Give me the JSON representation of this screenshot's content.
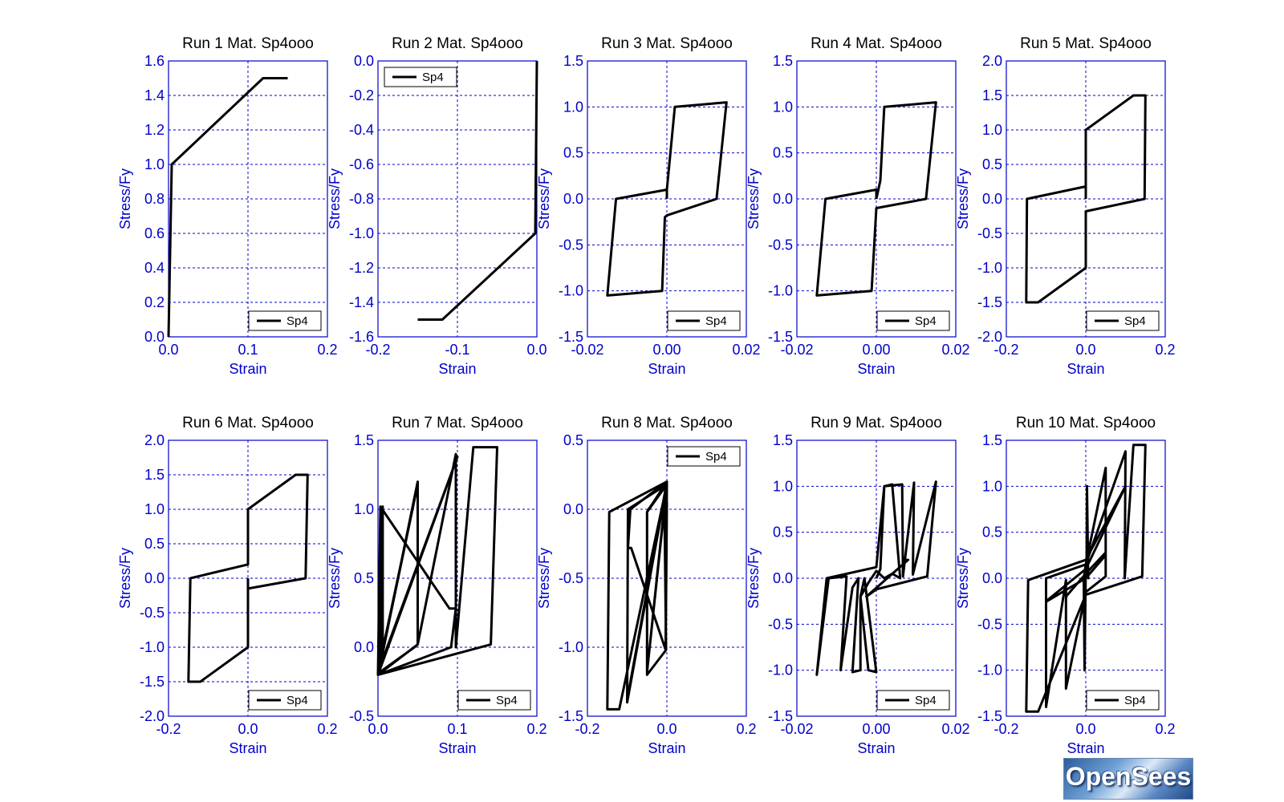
{
  "chart_data": [
    {
      "type": "line",
      "title": "Run 1   Mat. Sp4ooo",
      "xlabel": "Strain",
      "ylabel": "Stress/Fy",
      "xlim": [
        0,
        0.2
      ],
      "ylim": [
        0,
        1.6
      ],
      "xticks": [
        0,
        0.1,
        0.2
      ],
      "xtick_labels": [
        "0.0",
        "0.1",
        "0.2"
      ],
      "yticks": [
        0,
        0.2,
        0.4,
        0.6,
        0.8,
        1.0,
        1.2,
        1.4,
        1.6
      ],
      "ytick_labels": [
        "0.0",
        "0.2",
        "0.4",
        "0.6",
        "0.8",
        "1.0",
        "1.2",
        "1.4",
        "1.6"
      ],
      "grid": true,
      "legend_position": "bottom-right",
      "series": [
        {
          "name": "Sp4",
          "color": "#000000",
          "x": [
            0,
            0.004,
            0.119,
            0.15
          ],
          "y": [
            0,
            1.0,
            1.5,
            1.5
          ]
        }
      ]
    },
    {
      "type": "line",
      "title": "Run 2   Mat. Sp4ooo",
      "xlabel": "Strain",
      "ylabel": "Stress/Fy",
      "xlim": [
        -0.2,
        0
      ],
      "ylim": [
        -1.6,
        0
      ],
      "xticks": [
        -0.2,
        -0.1,
        0
      ],
      "xtick_labels": [
        "-0.2",
        "-0.1",
        "0.0"
      ],
      "yticks": [
        -1.6,
        -1.4,
        -1.2,
        -1.0,
        -0.8,
        -0.6,
        -0.4,
        -0.2,
        0
      ],
      "ytick_labels": [
        "-1.6",
        "-1.4",
        "-1.2",
        "-1.0",
        "-0.8",
        "-0.6",
        "-0.4",
        "-0.2",
        "0.0"
      ],
      "grid": true,
      "legend_position": "top-left",
      "series": [
        {
          "name": "Sp4",
          "color": "#000000",
          "x": [
            0,
            -0.002,
            -0.119,
            -0.15
          ],
          "y": [
            0,
            -1.0,
            -1.5,
            -1.5
          ]
        }
      ]
    },
    {
      "type": "line",
      "title": "Run 3   Mat. Sp4ooo",
      "xlabel": "Strain",
      "ylabel": "Stress/Fy",
      "xlim": [
        -0.02,
        0.02
      ],
      "ylim": [
        -1.5,
        1.5
      ],
      "xticks": [
        -0.02,
        0,
        0.02
      ],
      "xtick_labels": [
        "-0.02",
        "0.00",
        "0.02"
      ],
      "yticks": [
        -1.5,
        -1.0,
        -0.5,
        0,
        0.5,
        1.0,
        1.5
      ],
      "ytick_labels": [
        "-1.5",
        "-1.0",
        "-0.5",
        "0.0",
        "0.5",
        "1.0",
        "1.5"
      ],
      "grid": true,
      "legend_position": "bottom-right",
      "series": [
        {
          "name": "Sp4",
          "color": "#000000",
          "x": [
            0,
            0,
            0.002,
            0.015,
            0.0125,
            0,
            -0.0005,
            -0.0012,
            -0.015,
            -0.0128,
            0,
            0
          ],
          "y": [
            0,
            0.1,
            1.0,
            1.05,
            0.0,
            -0.18,
            -0.2,
            -1.0,
            -1.05,
            0.0,
            0.1,
            0.05
          ]
        }
      ]
    },
    {
      "type": "line",
      "title": "Run 4   Mat. Sp4ooo",
      "xlabel": "Strain",
      "ylabel": "Stress/Fy",
      "xlim": [
        -0.02,
        0.02
      ],
      "ylim": [
        -1.5,
        1.5
      ],
      "xticks": [
        -0.02,
        0,
        0.02
      ],
      "xtick_labels": [
        "-0.02",
        "0.00",
        "0.02"
      ],
      "yticks": [
        -1.5,
        -1.0,
        -0.5,
        0,
        0.5,
        1.0,
        1.5
      ],
      "ytick_labels": [
        "-1.5",
        "-1.0",
        "-0.5",
        "0.0",
        "0.5",
        "1.0",
        "1.5"
      ],
      "grid": true,
      "legend_position": "bottom-right",
      "series": [
        {
          "name": "Sp4",
          "color": "#000000",
          "x": [
            0,
            0.001,
            0.002,
            0.015,
            0.0125,
            0,
            -0.0012,
            -0.015,
            -0.0128,
            0,
            0
          ],
          "y": [
            0,
            0.2,
            1.0,
            1.05,
            0.0,
            -0.1,
            -1.0,
            -1.05,
            0.0,
            0.1,
            0.0
          ]
        }
      ]
    },
    {
      "type": "line",
      "title": "Run 5   Mat. Sp4ooo",
      "xlabel": "Strain",
      "ylabel": "Stress/Fy",
      "xlim": [
        -0.2,
        0.2
      ],
      "ylim": [
        -2.0,
        2.0
      ],
      "xticks": [
        -0.2,
        0,
        0.2
      ],
      "xtick_labels": [
        "-0.2",
        "0.0",
        "0.2"
      ],
      "yticks": [
        -2.0,
        -1.5,
        -1.0,
        -0.5,
        0,
        0.5,
        1.0,
        1.5,
        2.0
      ],
      "ytick_labels": [
        "-2.0",
        "-1.5",
        "-1.0",
        "-0.5",
        "0.0",
        "0.5",
        "1.0",
        "1.5",
        "2.0"
      ],
      "grid": true,
      "legend_position": "bottom-right",
      "series": [
        {
          "name": "Sp4",
          "color": "#000000",
          "x": [
            0,
            0,
            0.12,
            0.15,
            0.148,
            0,
            0,
            -0.12,
            -0.15,
            -0.148,
            0,
            0
          ],
          "y": [
            0,
            1.0,
            1.5,
            1.5,
            0.0,
            -0.18,
            -1.0,
            -1.5,
            -1.5,
            0.0,
            0.18,
            0.1
          ]
        }
      ]
    },
    {
      "type": "line",
      "title": "Run 6   Mat. Sp4ooo",
      "xlabel": "Strain",
      "ylabel": "Stress/Fy",
      "xlim": [
        -0.2,
        0.2
      ],
      "ylim": [
        -2.0,
        2.0
      ],
      "xticks": [
        -0.2,
        0,
        0.2
      ],
      "xtick_labels": [
        "-0.2",
        "0.0",
        "0.2"
      ],
      "yticks": [
        -2.0,
        -1.5,
        -1.0,
        -0.5,
        0,
        0.5,
        1.0,
        1.5,
        2.0
      ],
      "ytick_labels": [
        "-2.0",
        "-1.5",
        "-1.0",
        "-0.5",
        "0.0",
        "0.5",
        "1.0",
        "1.5",
        "2.0"
      ],
      "grid": true,
      "legend_position": "bottom-right",
      "series": [
        {
          "name": "Sp4",
          "color": "#000000",
          "x": [
            0,
            0,
            -0.12,
            -0.15,
            -0.145,
            0,
            0,
            0.12,
            0.15,
            0.145,
            0,
            0
          ],
          "y": [
            0,
            -1.0,
            -1.5,
            -1.5,
            0.0,
            0.2,
            1.0,
            1.5,
            1.5,
            0.0,
            -0.15,
            -0.05
          ]
        }
      ]
    },
    {
      "type": "line",
      "title": "Run 7   Mat. Sp4ooo",
      "xlabel": "Strain",
      "ylabel": "Stress/Fy",
      "xlim": [
        0,
        0.2
      ],
      "ylim": [
        -0.5,
        1.5
      ],
      "xticks": [
        0,
        0.1,
        0.2
      ],
      "xtick_labels": [
        "0.0",
        "0.1",
        "0.2"
      ],
      "yticks": [
        -0.5,
        0,
        0.5,
        1.0,
        1.5
      ],
      "ytick_labels": [
        "-0.5",
        "0.0",
        "0.5",
        "1.0",
        "1.5"
      ],
      "grid": true,
      "legend_position": "bottom-right",
      "series": [
        {
          "name": "Sp4",
          "color": "#000000",
          "x": [
            0,
            0.002,
            0.003,
            0.003,
            0.006,
            0.006,
            0.001,
            0.05,
            0.05,
            0.098,
            0.098,
            0.12,
            0.15,
            0.142,
            0,
            0.1,
            0,
            0.05,
            0,
            0.003,
            0.09,
            0.098,
            0.092,
            0,
            0.05,
            0.046,
            0,
            0.005
          ],
          "y": [
            0,
            0.05,
            1.0,
            -0.05,
            0.0,
            1.02,
            -0.18,
            1.2,
            0.02,
            1.4,
            0.0,
            1.45,
            1.45,
            0.02,
            -0.2,
            1.38,
            -0.18,
            1.18,
            -0.2,
            1.02,
            0.28,
            0.28,
            0.0,
            -0.2,
            0.02,
            0.0,
            -0.19,
            -0.1
          ]
        }
      ]
    },
    {
      "type": "line",
      "title": "Run 8   Mat. Sp4ooo",
      "xlabel": "Strain",
      "ylabel": "Stress/Fy",
      "xlim": [
        -0.2,
        0.2
      ],
      "ylim": [
        -1.5,
        0.5
      ],
      "xticks": [
        -0.2,
        0,
        0.2
      ],
      "xtick_labels": [
        "-0.2",
        "0.0",
        "0.2"
      ],
      "yticks": [
        -1.5,
        -1.0,
        -0.5,
        0,
        0.5
      ],
      "ytick_labels": [
        "-1.5",
        "-1.0",
        "-0.5",
        "0.0",
        "0.5"
      ],
      "grid": true,
      "legend_position": "top-right",
      "series": [
        {
          "name": "Sp4",
          "color": "#000000",
          "x": [
            0,
            -0.002,
            -0.003,
            0,
            -0.006,
            -0.002,
            -0.05,
            -0.05,
            0,
            -0.1,
            -0.098,
            0,
            -0.12,
            -0.15,
            -0.145,
            0,
            -0.1,
            0,
            -0.05,
            0,
            -0.003,
            -0.09,
            -0.098,
            -0.092,
            0,
            -0.05,
            -0.046,
            0,
            -0.005
          ],
          "y": [
            0,
            -0.05,
            -1.0,
            0.05,
            0.0,
            -1.02,
            -1.2,
            -0.02,
            0.18,
            -1.4,
            0.0,
            0.18,
            -1.45,
            -1.45,
            -0.02,
            0.2,
            -1.38,
            0.18,
            -1.18,
            0.2,
            -1.02,
            -0.28,
            -0.28,
            0.0,
            0.2,
            -0.02,
            0.0,
            0.19,
            0.1
          ]
        }
      ]
    },
    {
      "type": "line",
      "title": "Run 9   Mat. Sp4ooo",
      "xlabel": "Strain",
      "ylabel": "Stress/Fy",
      "xlim": [
        -0.02,
        0.02
      ],
      "ylim": [
        -1.5,
        1.5
      ],
      "xticks": [
        -0.02,
        0,
        0.02
      ],
      "xtick_labels": [
        "-0.02",
        "0.00",
        "0.02"
      ],
      "yticks": [
        -1.5,
        -1.0,
        -0.5,
        0,
        0.5,
        1.0,
        1.5
      ],
      "ytick_labels": [
        "-1.5",
        "-1.0",
        "-0.5",
        "0.0",
        "0.5",
        "1.0",
        "1.5"
      ],
      "grid": true,
      "legend_position": "bottom-right",
      "series": [
        {
          "name": "Sp4",
          "color": "#000000",
          "x": [
            0,
            0.001,
            0.002,
            0.004,
            0.006,
            0.004,
            0.002,
            0,
            -0.002,
            -0.004,
            -0.002,
            0,
            -0.003,
            -0.004,
            -0.004,
            -0.006,
            -0.0045,
            -0.006,
            -0.009,
            -0.0075,
            -0.012,
            -0.015,
            -0.0125,
            0,
            0.002,
            0.0065,
            0.0067,
            0.0095,
            0.0092,
            0.015,
            0.0128,
            0,
            -0.0025,
            0.008,
            0.0075
          ],
          "y": [
            0,
            0.1,
            1.0,
            1.02,
            0.0,
            0.05,
            0.0,
            0.08,
            -0.05,
            -0.2,
            -1.0,
            -1.02,
            0.0,
            -0.2,
            -1.0,
            -1.02,
            0.0,
            -0.1,
            -1.0,
            0.02,
            0.0,
            -1.05,
            0.0,
            0.12,
            1.0,
            1.02,
            0.02,
            1.04,
            0.04,
            1.05,
            0.02,
            -0.12,
            -0.2,
            0.2,
            0.2
          ]
        }
      ]
    },
    {
      "type": "line",
      "title": "Run 10   Mat. Sp4ooo",
      "xlabel": "Strain",
      "ylabel": "Stress/Fy",
      "xlim": [
        -0.2,
        0.2
      ],
      "ylim": [
        -1.5,
        1.5
      ],
      "xticks": [
        -0.2,
        0,
        0.2
      ],
      "xtick_labels": [
        "-0.2",
        "0.0",
        "0.2"
      ],
      "yticks": [
        -1.5,
        -1.0,
        -0.5,
        0,
        0.5,
        1.0,
        1.5
      ],
      "ytick_labels": [
        "-1.5",
        "-1.0",
        "-0.5",
        "0.0",
        "0.5",
        "1.0",
        "1.5"
      ],
      "grid": true,
      "legend_position": "bottom-right",
      "series": [
        {
          "name": "Sp4",
          "color": "#000000",
          "x": [
            0,
            0.002,
            0.003,
            0.006,
            0,
            -0.003,
            -0.005,
            -0.005,
            0,
            0.05,
            0.05,
            0,
            -0.05,
            -0.05,
            -0.1,
            -0.1,
            0,
            0.1,
            0.098,
            0.12,
            0.15,
            0.142,
            0,
            -0.12,
            -0.15,
            -0.145,
            0,
            0.1,
            0,
            -0.1,
            -0.098,
            0,
            0.05,
            0.05,
            0,
            -0.05,
            -0.046
          ],
          "y": [
            0,
            0.1,
            1.0,
            0.0,
            0.12,
            -1.0,
            -0.05,
            0.0,
            0.15,
            1.2,
            0.02,
            -0.15,
            -1.2,
            -0.02,
            -1.4,
            0.0,
            0.15,
            1.38,
            0.0,
            1.45,
            1.45,
            0.02,
            -0.18,
            -1.45,
            -1.45,
            -0.02,
            0.2,
            1.0,
            0.1,
            -0.25,
            -0.25,
            0.0,
            0.25,
            0.28,
            0.05,
            -0.2,
            -0.2
          ]
        }
      ]
    }
  ],
  "logo": {
    "text": "OpenSees"
  }
}
